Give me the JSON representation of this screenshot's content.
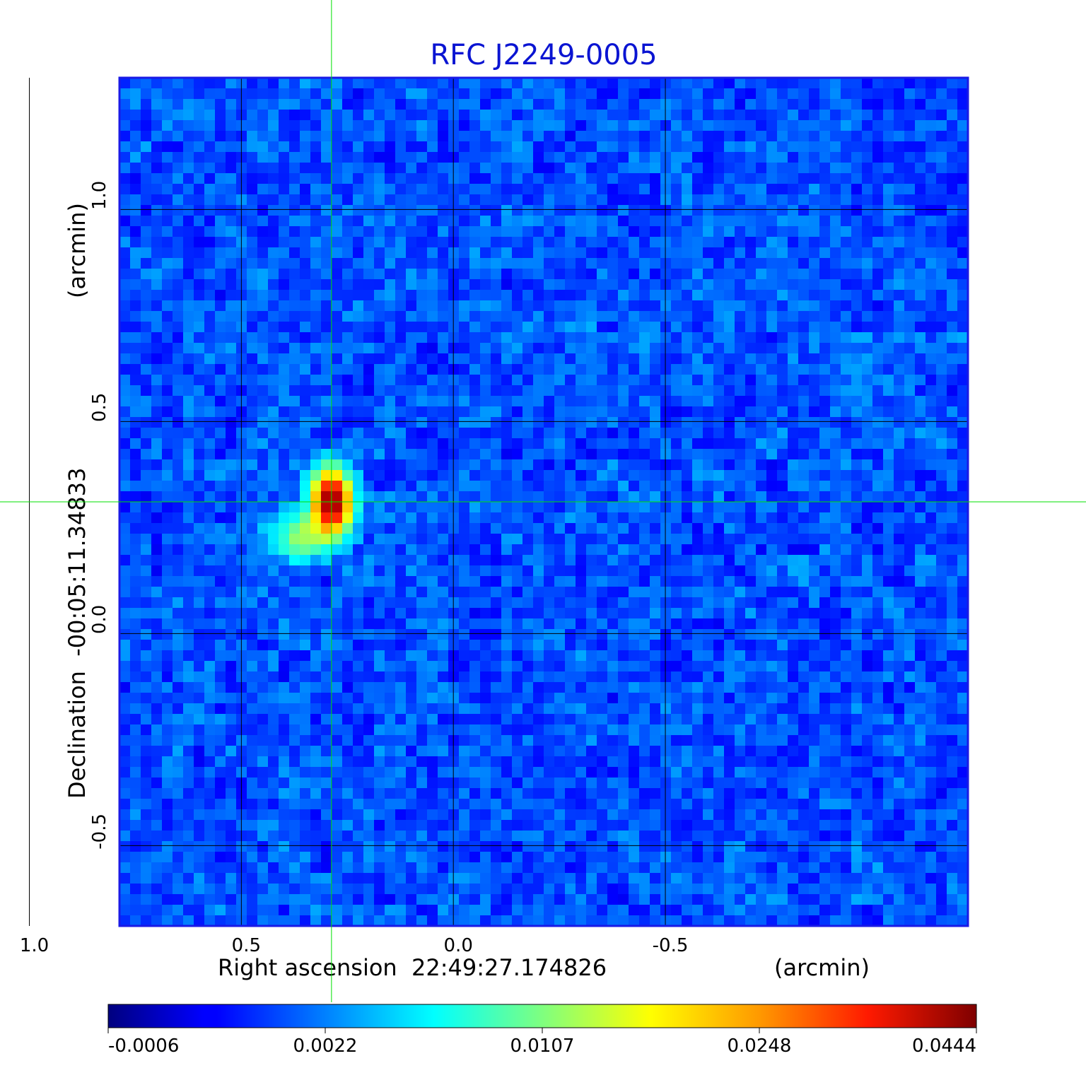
{
  "chart_data": {
    "type": "heatmap",
    "title": "RFC J2249-0005",
    "xlabel": "Right ascension  22:49:27.174826",
    "xunit": "(arcmin)",
    "ylabel": "Declination  -00:05:11.34833",
    "yunit": "(arcmin)",
    "xlim": [
      0.7874,
      -1.2136
    ],
    "ylim": [
      -0.6894,
      1.3106
    ],
    "x_ticks": [
      {
        "value": 1.0,
        "label": "1.0"
      },
      {
        "value": 0.5,
        "label": "0.5"
      },
      {
        "value": 0.0,
        "label": "0.0"
      },
      {
        "value": -0.5,
        "label": "-0.5"
      }
    ],
    "y_ticks": [
      {
        "value": 1.0,
        "label": "1.0"
      },
      {
        "value": 0.5,
        "label": "0.5"
      },
      {
        "value": 0.0,
        "label": "0.0"
      },
      {
        "value": -0.5,
        "label": "-0.5"
      }
    ],
    "grid": true,
    "crosshair": {
      "x": 0.2874,
      "y": 0.3106,
      "color": "#00e000"
    },
    "colormap": "jet",
    "colorbar": {
      "orientation": "horizontal",
      "position": "bottom",
      "tick_labels": [
        "-0.0006",
        "0.0022",
        "0.0107",
        "0.0248",
        "0.0444"
      ]
    },
    "peak_value": 0.0444,
    "background_level": 0.0005,
    "source_components": [
      {
        "x": 0.2874,
        "y": 0.3106,
        "peak": 0.0444,
        "sigma_x": 0.028,
        "sigma_y": 0.045
      },
      {
        "x": 0.355,
        "y": 0.23,
        "peak": 0.0095,
        "sigma_x": 0.045,
        "sigma_y": 0.035
      }
    ]
  }
}
